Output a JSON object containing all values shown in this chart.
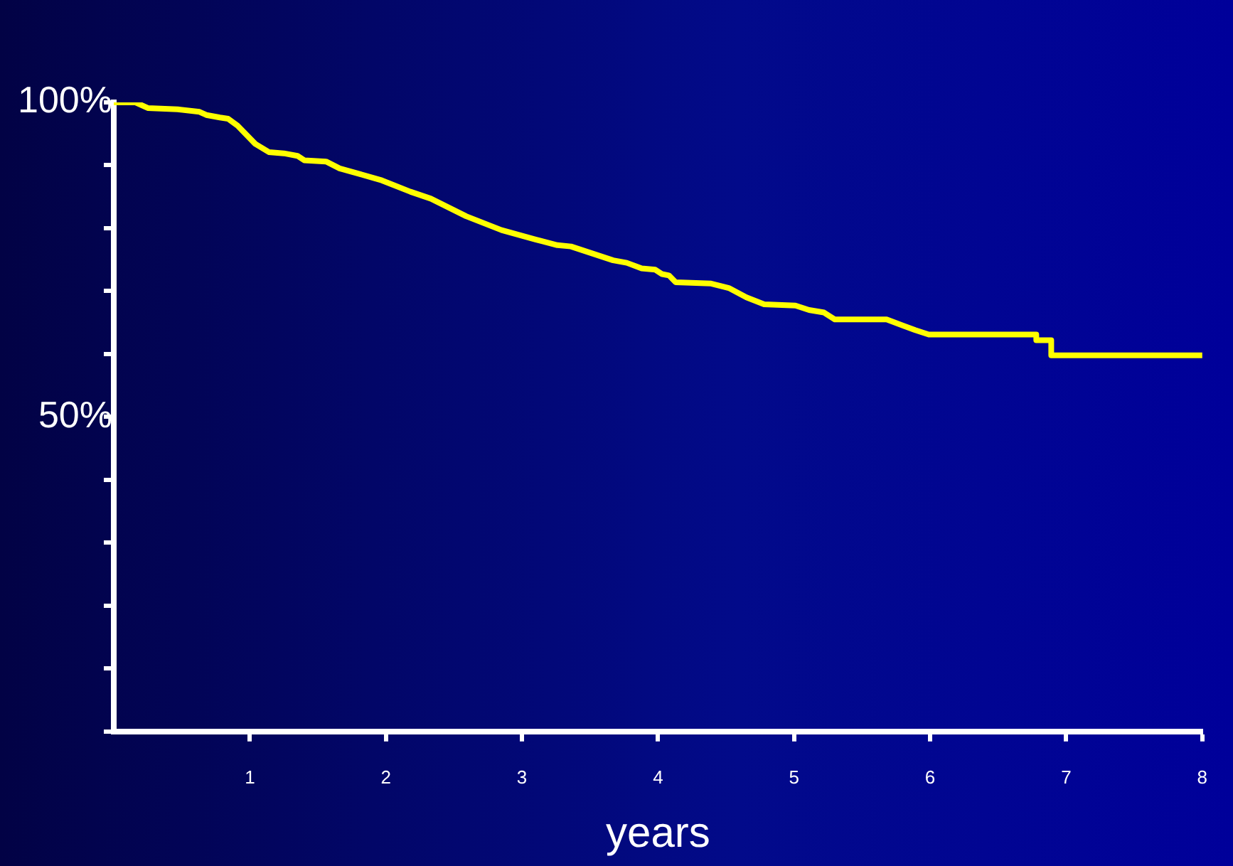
{
  "chart_data": {
    "type": "line",
    "xlabel": "years",
    "series": [
      {
        "color": "#ffff00",
        "x": [
          0,
          0.16,
          0.25,
          0.47,
          0.63,
          0.68,
          0.78,
          0.84,
          0.91,
          1.04,
          1.14,
          1.25,
          1.35,
          1.4,
          1.56,
          1.66,
          1.81,
          1.97,
          2.18,
          2.33,
          2.59,
          2.85,
          3.1,
          3.26,
          3.36,
          3.67,
          3.77,
          3.88,
          3.98,
          4.03,
          4.08,
          4.13,
          4.39,
          4.52,
          4.65,
          4.78,
          5.01,
          5.11,
          5.22,
          5.3,
          5.68,
          5.89,
          5.99,
          6.78,
          6.78,
          6.89,
          6.89,
          8
        ],
        "values": [
          100,
          100,
          99.1,
          98.9,
          98.5,
          98,
          97.6,
          97.4,
          96.3,
          93.4,
          92.1,
          91.9,
          91.5,
          90.8,
          90.6,
          89.5,
          88.6,
          87.6,
          85.8,
          84.7,
          81.9,
          79.7,
          78.2,
          77.3,
          77.1,
          74.9,
          74.5,
          73.6,
          73.4,
          72.7,
          72.5,
          71.4,
          71.2,
          70.5,
          69,
          67.9,
          67.7,
          67,
          66.6,
          65.5,
          65.5,
          63.8,
          63.1,
          63.1,
          62.2,
          62.2,
          59.8,
          59.8
        ]
      }
    ],
    "xlim": [
      0,
      8
    ],
    "xticks": [
      1,
      2,
      3,
      4,
      5,
      6,
      7,
      8
    ],
    "ylim": [
      0,
      100
    ],
    "yticks": [
      {
        "value": 0,
        "label": null
      },
      {
        "value": 10,
        "label": null
      },
      {
        "value": 20,
        "label": null
      },
      {
        "value": 30,
        "label": null
      },
      {
        "value": 40,
        "label": null
      },
      {
        "value": 50,
        "label": "50%"
      },
      {
        "value": 60,
        "label": null
      },
      {
        "value": 70,
        "label": null
      },
      {
        "value": 80,
        "label": null
      },
      {
        "value": 90,
        "label": null
      },
      {
        "value": 100,
        "label": "100%"
      }
    ],
    "grid": false,
    "legend": false
  }
}
